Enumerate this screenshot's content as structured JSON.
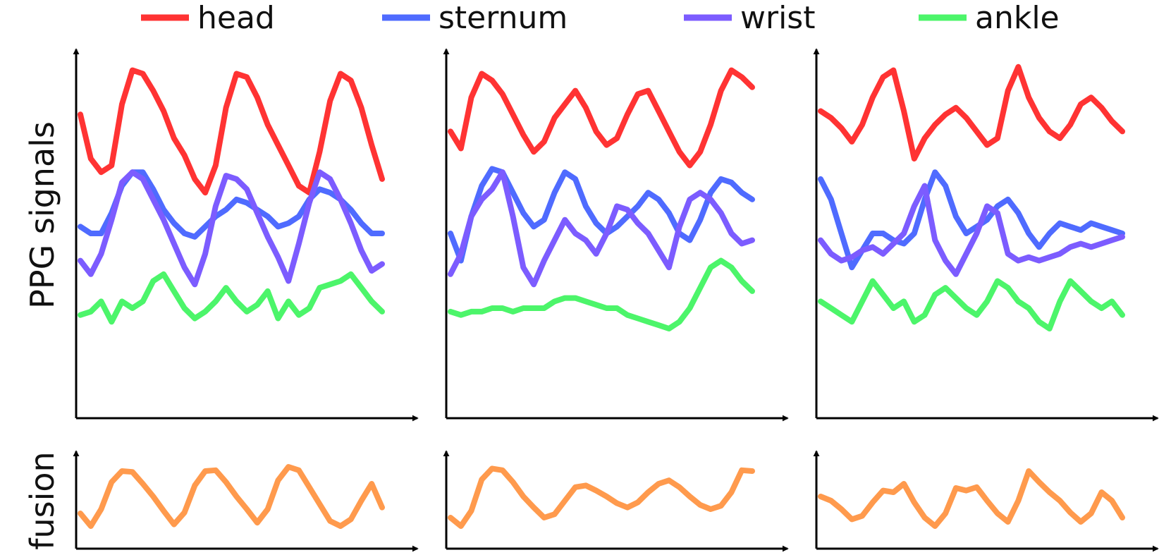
{
  "legend": {
    "placement": "top",
    "entries": [
      {
        "name": "head",
        "color": "#ff3333"
      },
      {
        "name": "sternum",
        "color": "#4f6bff"
      },
      {
        "name": "wrist",
        "color": "#7c5cff"
      },
      {
        "name": "ankle",
        "color": "#4cf56a"
      }
    ]
  },
  "ylabels": {
    "top": "PPG signals",
    "bottom": "fusion"
  },
  "fusion_color": "#ff9a4d",
  "chart_data": [
    {
      "type": "line",
      "title": "",
      "grid": false,
      "axes_ticks": false,
      "x": [
        0,
        1,
        2,
        3,
        4,
        5,
        6,
        7,
        8,
        9,
        10,
        11,
        12,
        13,
        14,
        15,
        16,
        17,
        18,
        19,
        20,
        21,
        22,
        23,
        24,
        25,
        26,
        27,
        28,
        29
      ],
      "series": [
        {
          "name": "head",
          "values": [
            0.85,
            0.72,
            0.68,
            0.7,
            0.88,
            0.98,
            0.97,
            0.92,
            0.86,
            0.78,
            0.73,
            0.66,
            0.62,
            0.7,
            0.87,
            0.97,
            0.96,
            0.9,
            0.82,
            0.76,
            0.7,
            0.64,
            0.62,
            0.74,
            0.89,
            0.97,
            0.95,
            0.87,
            0.76,
            0.66
          ]
        },
        {
          "name": "sternum",
          "values": [
            0.52,
            0.5,
            0.5,
            0.56,
            0.64,
            0.68,
            0.68,
            0.63,
            0.57,
            0.53,
            0.5,
            0.49,
            0.52,
            0.55,
            0.57,
            0.6,
            0.59,
            0.57,
            0.55,
            0.52,
            0.53,
            0.55,
            0.6,
            0.63,
            0.62,
            0.6,
            0.57,
            0.53,
            0.5,
            0.5
          ]
        },
        {
          "name": "wrist",
          "values": [
            0.42,
            0.38,
            0.44,
            0.54,
            0.65,
            0.68,
            0.66,
            0.6,
            0.54,
            0.47,
            0.4,
            0.35,
            0.44,
            0.58,
            0.67,
            0.66,
            0.63,
            0.56,
            0.49,
            0.43,
            0.36,
            0.47,
            0.59,
            0.68,
            0.66,
            0.6,
            0.53,
            0.45,
            0.39,
            0.41
          ]
        },
        {
          "name": "ankle",
          "values": [
            0.26,
            0.27,
            0.3,
            0.24,
            0.3,
            0.28,
            0.3,
            0.36,
            0.38,
            0.33,
            0.28,
            0.25,
            0.27,
            0.3,
            0.34,
            0.3,
            0.27,
            0.29,
            0.33,
            0.25,
            0.3,
            0.26,
            0.28,
            0.34,
            0.35,
            0.36,
            0.38,
            0.34,
            0.3,
            0.27
          ]
        }
      ],
      "fusion": [
        0.35,
        0.2,
        0.4,
        0.72,
        0.85,
        0.84,
        0.7,
        0.55,
        0.38,
        0.22,
        0.36,
        0.68,
        0.85,
        0.86,
        0.72,
        0.55,
        0.4,
        0.24,
        0.4,
        0.74,
        0.9,
        0.86,
        0.66,
        0.46,
        0.26,
        0.2,
        0.28,
        0.5,
        0.7,
        0.42
      ]
    },
    {
      "type": "line",
      "title": "",
      "grid": false,
      "axes_ticks": false,
      "x": [
        0,
        1,
        2,
        3,
        4,
        5,
        6,
        7,
        8,
        9,
        10,
        11,
        12,
        13,
        14,
        15,
        16,
        17,
        18,
        19,
        20,
        21,
        22,
        23,
        24,
        25,
        26,
        27,
        28,
        29
      ],
      "series": [
        {
          "name": "head",
          "values": [
            0.8,
            0.75,
            0.9,
            0.97,
            0.95,
            0.91,
            0.85,
            0.79,
            0.74,
            0.77,
            0.84,
            0.88,
            0.92,
            0.87,
            0.8,
            0.76,
            0.78,
            0.85,
            0.91,
            0.92,
            0.86,
            0.8,
            0.74,
            0.7,
            0.74,
            0.82,
            0.92,
            0.98,
            0.96,
            0.93
          ]
        },
        {
          "name": "sternum",
          "values": [
            0.5,
            0.42,
            0.55,
            0.64,
            0.69,
            0.68,
            0.62,
            0.56,
            0.52,
            0.54,
            0.62,
            0.68,
            0.66,
            0.58,
            0.53,
            0.5,
            0.52,
            0.55,
            0.58,
            0.62,
            0.6,
            0.56,
            0.5,
            0.48,
            0.54,
            0.62,
            0.66,
            0.65,
            0.62,
            0.6
          ]
        },
        {
          "name": "wrist",
          "values": [
            0.38,
            0.44,
            0.55,
            0.6,
            0.63,
            0.68,
            0.55,
            0.4,
            0.35,
            0.42,
            0.48,
            0.54,
            0.5,
            0.48,
            0.44,
            0.5,
            0.58,
            0.57,
            0.53,
            0.5,
            0.45,
            0.4,
            0.52,
            0.6,
            0.62,
            0.6,
            0.56,
            0.5,
            0.47,
            0.48
          ]
        },
        {
          "name": "ankle",
          "values": [
            0.27,
            0.26,
            0.27,
            0.27,
            0.28,
            0.28,
            0.27,
            0.28,
            0.28,
            0.28,
            0.3,
            0.31,
            0.31,
            0.3,
            0.29,
            0.28,
            0.28,
            0.26,
            0.25,
            0.24,
            0.23,
            0.22,
            0.24,
            0.28,
            0.34,
            0.4,
            0.42,
            0.4,
            0.36,
            0.33
          ]
        }
      ],
      "fusion": [
        0.3,
        0.2,
        0.38,
        0.75,
        0.88,
        0.86,
        0.72,
        0.55,
        0.42,
        0.3,
        0.34,
        0.5,
        0.66,
        0.68,
        0.62,
        0.55,
        0.47,
        0.42,
        0.48,
        0.6,
        0.7,
        0.74,
        0.66,
        0.55,
        0.45,
        0.4,
        0.44,
        0.6,
        0.86,
        0.85
      ]
    },
    {
      "type": "line",
      "title": "",
      "grid": false,
      "axes_ticks": false,
      "x": [
        0,
        1,
        2,
        3,
        4,
        5,
        6,
        7,
        8,
        9,
        10,
        11,
        12,
        13,
        14,
        15,
        16,
        17,
        18,
        19,
        20,
        21,
        22,
        23,
        24,
        25,
        26,
        27,
        28,
        29
      ],
      "series": [
        {
          "name": "head",
          "values": [
            0.86,
            0.84,
            0.81,
            0.77,
            0.82,
            0.9,
            0.96,
            0.98,
            0.86,
            0.72,
            0.78,
            0.82,
            0.85,
            0.87,
            0.84,
            0.8,
            0.76,
            0.78,
            0.92,
            0.99,
            0.9,
            0.84,
            0.8,
            0.78,
            0.82,
            0.88,
            0.9,
            0.87,
            0.83,
            0.8
          ]
        },
        {
          "name": "sternum",
          "values": [
            0.66,
            0.6,
            0.5,
            0.4,
            0.45,
            0.5,
            0.5,
            0.48,
            0.47,
            0.5,
            0.6,
            0.68,
            0.64,
            0.55,
            0.5,
            0.52,
            0.54,
            0.58,
            0.6,
            0.56,
            0.5,
            0.46,
            0.5,
            0.53,
            0.52,
            0.51,
            0.53,
            0.52,
            0.51,
            0.5
          ]
        },
        {
          "name": "wrist",
          "values": [
            0.48,
            0.44,
            0.42,
            0.43,
            0.45,
            0.46,
            0.44,
            0.47,
            0.5,
            0.58,
            0.64,
            0.48,
            0.42,
            0.38,
            0.44,
            0.5,
            0.58,
            0.56,
            0.44,
            0.42,
            0.43,
            0.42,
            0.43,
            0.44,
            0.46,
            0.47,
            0.46,
            0.47,
            0.48,
            0.49
          ]
        },
        {
          "name": "ankle",
          "values": [
            0.3,
            0.28,
            0.26,
            0.24,
            0.3,
            0.36,
            0.32,
            0.28,
            0.3,
            0.24,
            0.26,
            0.32,
            0.34,
            0.31,
            0.28,
            0.26,
            0.3,
            0.36,
            0.34,
            0.3,
            0.28,
            0.24,
            0.22,
            0.3,
            0.36,
            0.33,
            0.3,
            0.28,
            0.3,
            0.26
          ]
        }
      ],
      "fusion": [
        0.55,
        0.5,
        0.4,
        0.28,
        0.32,
        0.48,
        0.62,
        0.6,
        0.7,
        0.48,
        0.3,
        0.2,
        0.35,
        0.65,
        0.62,
        0.66,
        0.5,
        0.35,
        0.25,
        0.5,
        0.85,
        0.72,
        0.6,
        0.5,
        0.36,
        0.25,
        0.35,
        0.6,
        0.5,
        0.3
      ]
    }
  ]
}
